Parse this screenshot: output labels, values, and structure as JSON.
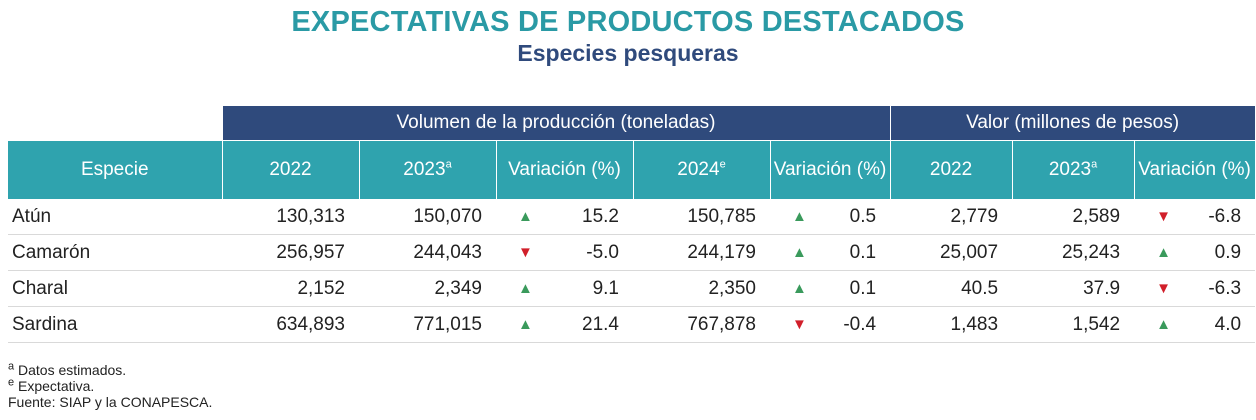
{
  "title": "EXPECTATIVAS DE PRODUCTOS DESTACADOS",
  "subtitle": "Especies pesqueras",
  "colors": {
    "title": "#2a9aa5",
    "group_header": "#2f4a7c",
    "header": "#2fa3ae",
    "up": "#3a9a5c",
    "down": "#d11f2a"
  },
  "table": {
    "groups": {
      "volume": "Volumen de la producción (toneladas)",
      "value": "Valor (millones de pesos)"
    },
    "headers": {
      "species": "Especie",
      "y2022": "2022",
      "y2023": "2023",
      "y2023_sup": "a",
      "variation": "Variación (%)",
      "y2024": "2024",
      "y2024_sup": "e"
    },
    "rows": [
      {
        "name": "Atún",
        "v2022": "130,313",
        "v2023": "150,070",
        "var1_dir": "up",
        "var1": "15.2",
        "v2024": "150,785",
        "var2_dir": "up",
        "var2": "0.5",
        "p2022": "2,779",
        "p2023": "2,589",
        "var3_dir": "down",
        "var3": "-6.8"
      },
      {
        "name": "Camarón",
        "v2022": "256,957",
        "v2023": "244,043",
        "var1_dir": "down",
        "var1": "-5.0",
        "v2024": "244,179",
        "var2_dir": "up",
        "var2": "0.1",
        "p2022": "25,007",
        "p2023": "25,243",
        "var3_dir": "up",
        "var3": "0.9"
      },
      {
        "name": "Charal",
        "v2022": "2,152",
        "v2023": "2,349",
        "var1_dir": "up",
        "var1": "9.1",
        "v2024": "2,350",
        "var2_dir": "up",
        "var2": "0.1",
        "p2022": "40.5",
        "p2023": "37.9",
        "var3_dir": "down",
        "var3": "-6.3"
      },
      {
        "name": "Sardina",
        "v2022": "634,893",
        "v2023": "771,015",
        "var1_dir": "up",
        "var1": "21.4",
        "v2024": "767,878",
        "var2_dir": "down",
        "var2": "-0.4",
        "p2022": "1,483",
        "p2023": "1,542",
        "var3_dir": "up",
        "var3": "4.0"
      }
    ]
  },
  "notes": {
    "a_sup": "a",
    "a_text": "Datos estimados.",
    "e_sup": "e",
    "e_text": "Expectativa.",
    "source": "Fuente: SIAP y la CONAPESCA."
  }
}
